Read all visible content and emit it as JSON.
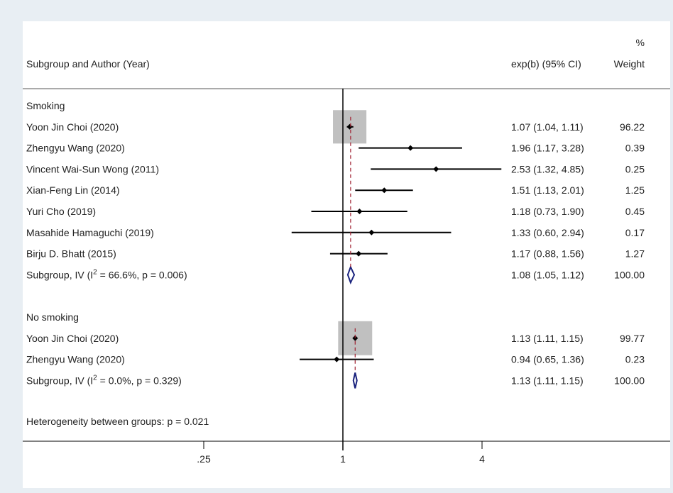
{
  "chart_data": {
    "type": "forest",
    "header": {
      "study_col": "Subgroup and Author (Year)",
      "effect_col": "exp(b) (95% CI)",
      "weight_col_top": "%",
      "weight_col": "Weight"
    },
    "x_scale": "log",
    "x_ticks": [
      {
        "value": 0.25,
        "label": ".25"
      },
      {
        "value": 1,
        "label": "1"
      },
      {
        "value": 4,
        "label": "4"
      }
    ],
    "null_value": 1,
    "groups": [
      {
        "name": "Smoking",
        "studies": [
          {
            "label": "Yoon Jin Choi (2020)",
            "est": 1.07,
            "lo": 1.04,
            "hi": 1.11,
            "ci_text": "1.07 (1.04, 1.11)",
            "weight": "96.22"
          },
          {
            "label": "Zhengyu Wang (2020)",
            "est": 1.96,
            "lo": 1.17,
            "hi": 3.28,
            "ci_text": "1.96 (1.17, 3.28)",
            "weight": "0.39"
          },
          {
            "label": "Vincent Wai-Sun Wong (2011)",
            "est": 2.53,
            "lo": 1.32,
            "hi": 4.85,
            "ci_text": "2.53 (1.32, 4.85)",
            "weight": "0.25"
          },
          {
            "label": "Xian-Feng Lin (2014)",
            "est": 1.51,
            "lo": 1.13,
            "hi": 2.01,
            "ci_text": "1.51 (1.13, 2.01)",
            "weight": "1.25"
          },
          {
            "label": "Yuri Cho (2019)",
            "est": 1.18,
            "lo": 0.73,
            "hi": 1.9,
            "ci_text": "1.18 (0.73, 1.90)",
            "weight": "0.45"
          },
          {
            "label": "Masahide Hamaguchi (2019)",
            "est": 1.33,
            "lo": 0.6,
            "hi": 2.94,
            "ci_text": "1.33 (0.60, 2.94)",
            "weight": "0.17"
          },
          {
            "label": "Birju D. Bhatt (2015)",
            "est": 1.17,
            "lo": 0.88,
            "hi": 1.56,
            "ci_text": "1.17 (0.88, 1.56)",
            "weight": "1.27"
          }
        ],
        "subtotal": {
          "label_pre": "Subgroup, IV (I",
          "label_sup": "2",
          "label_post": " = 66.6%, p = 0.006)",
          "est": 1.08,
          "lo": 1.05,
          "hi": 1.12,
          "ci_text": "1.08 (1.05, 1.12)",
          "weight": "100.00"
        }
      },
      {
        "name": "No smoking",
        "studies": [
          {
            "label": "Yoon Jin Choi (2020)",
            "est": 1.13,
            "lo": 1.11,
            "hi": 1.15,
            "ci_text": "1.13 (1.11, 1.15)",
            "weight": "99.77"
          },
          {
            "label": "Zhengyu Wang (2020)",
            "est": 0.94,
            "lo": 0.65,
            "hi": 1.36,
            "ci_text": "0.94 (0.65, 1.36)",
            "weight": "0.23"
          }
        ],
        "subtotal": {
          "label_pre": "Subgroup, IV (I",
          "label_sup": "2",
          "label_post": " = 0.0%, p = 0.329)",
          "est": 1.13,
          "lo": 1.11,
          "hi": 1.15,
          "ci_text": "1.13 (1.11, 1.15)",
          "weight": "100.00"
        }
      }
    ],
    "footer_note": "Heterogeneity between groups: p = 0.021",
    "colors": {
      "box": "#c0c0c0",
      "diamond": "#1a237e",
      "ref_line": "#a02030",
      "axis": "#000000",
      "point": "#000000"
    }
  }
}
